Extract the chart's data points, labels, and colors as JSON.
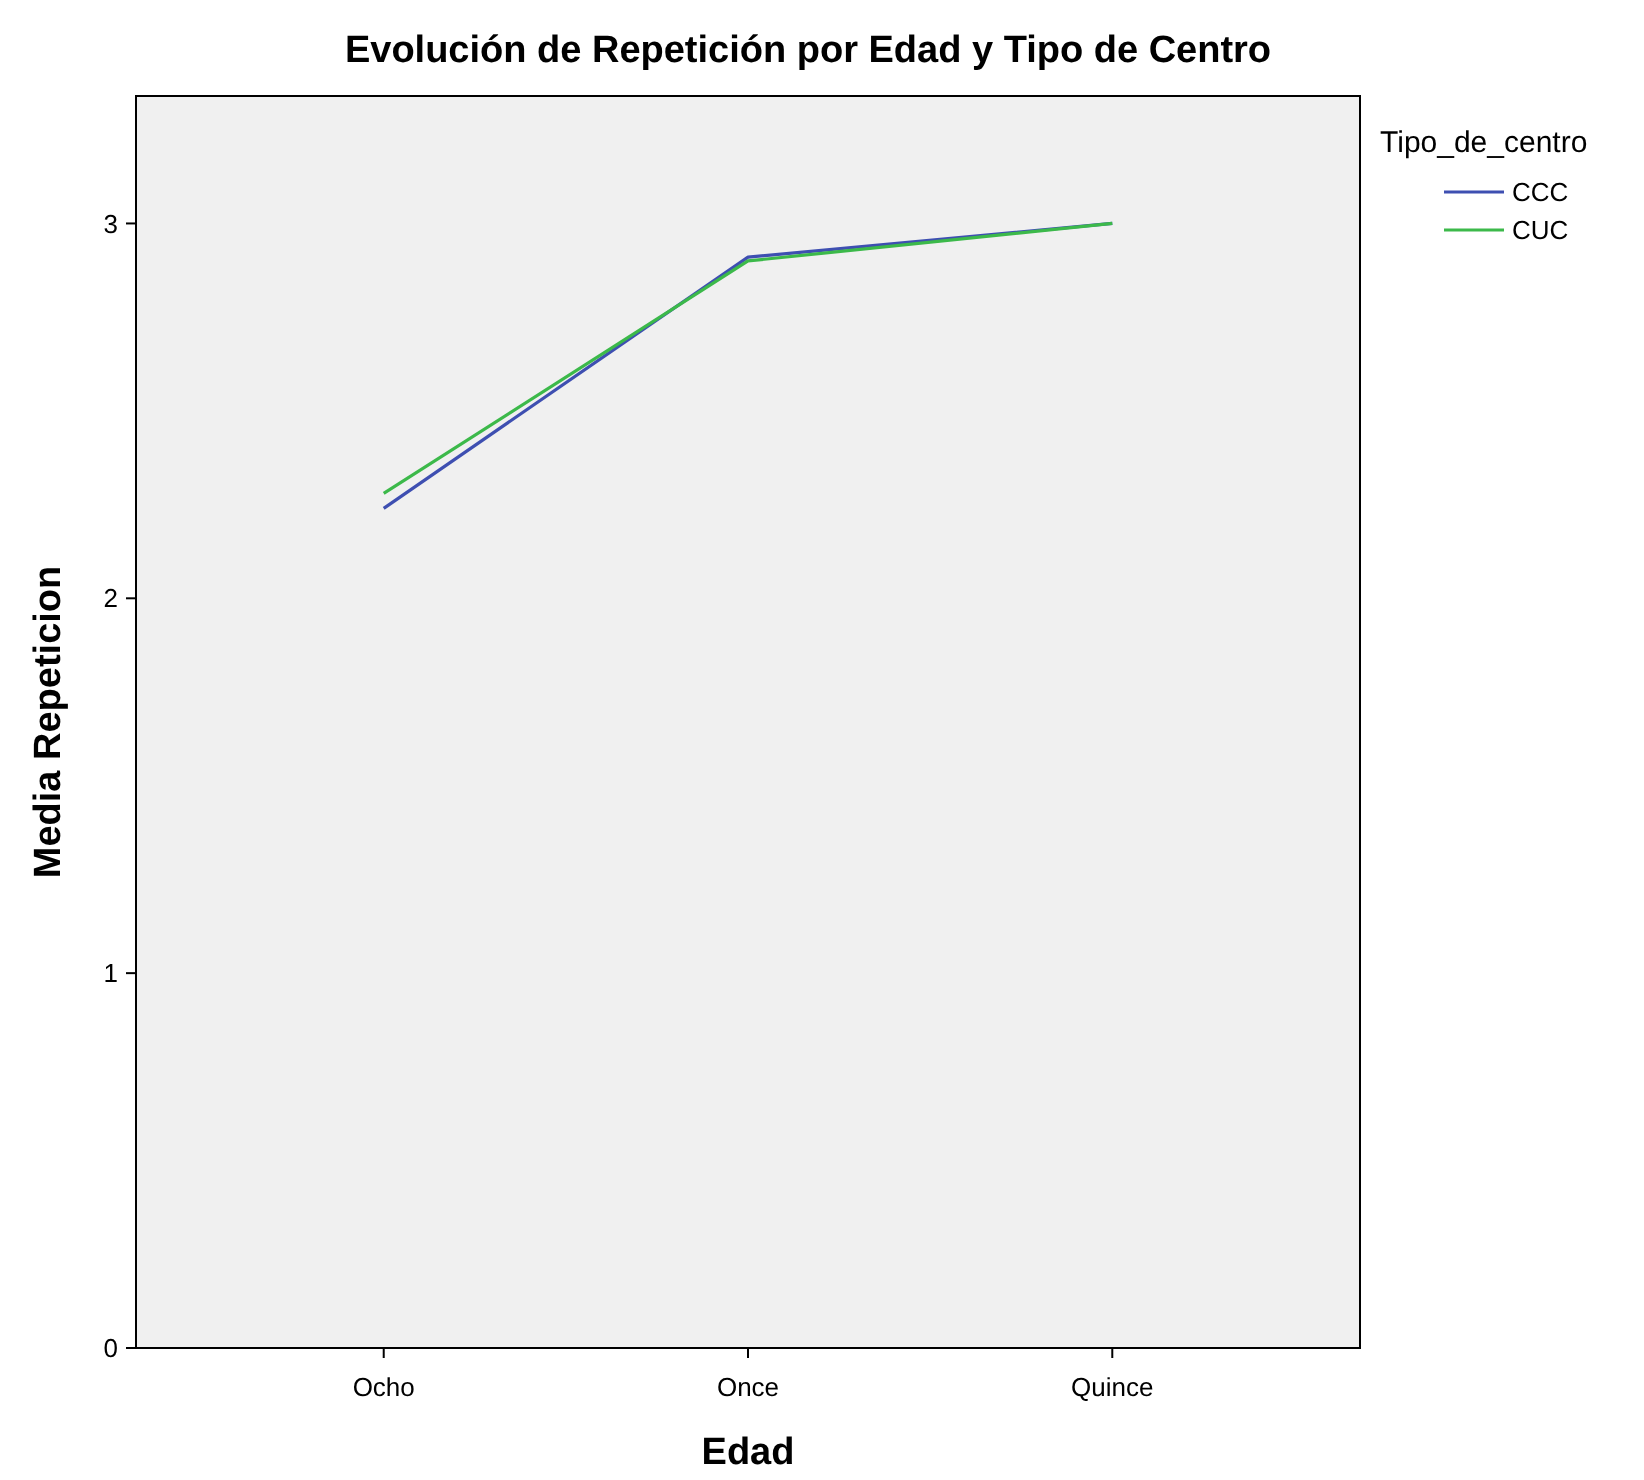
{
  "chart_data": {
    "type": "line",
    "title": "Evolución de Repetición por Edad y Tipo de Centro",
    "xlabel": "Edad",
    "ylabel": "Media Repeticion",
    "legend_title": "Tipo_de_centro",
    "legend": "right",
    "categories": [
      "Ocho",
      "Once",
      "Quince"
    ],
    "series": [
      {
        "name": "CCC",
        "color": "#3e4fb1",
        "values": [
          2.24,
          2.91,
          3.0
        ]
      },
      {
        "name": "CUC",
        "color": "#3cb94a",
        "values": [
          2.28,
          2.9,
          3.0
        ]
      }
    ],
    "ylim": [
      0,
      3.34
    ],
    "yticks": [
      0,
      1,
      2,
      3
    ],
    "grid": false
  }
}
